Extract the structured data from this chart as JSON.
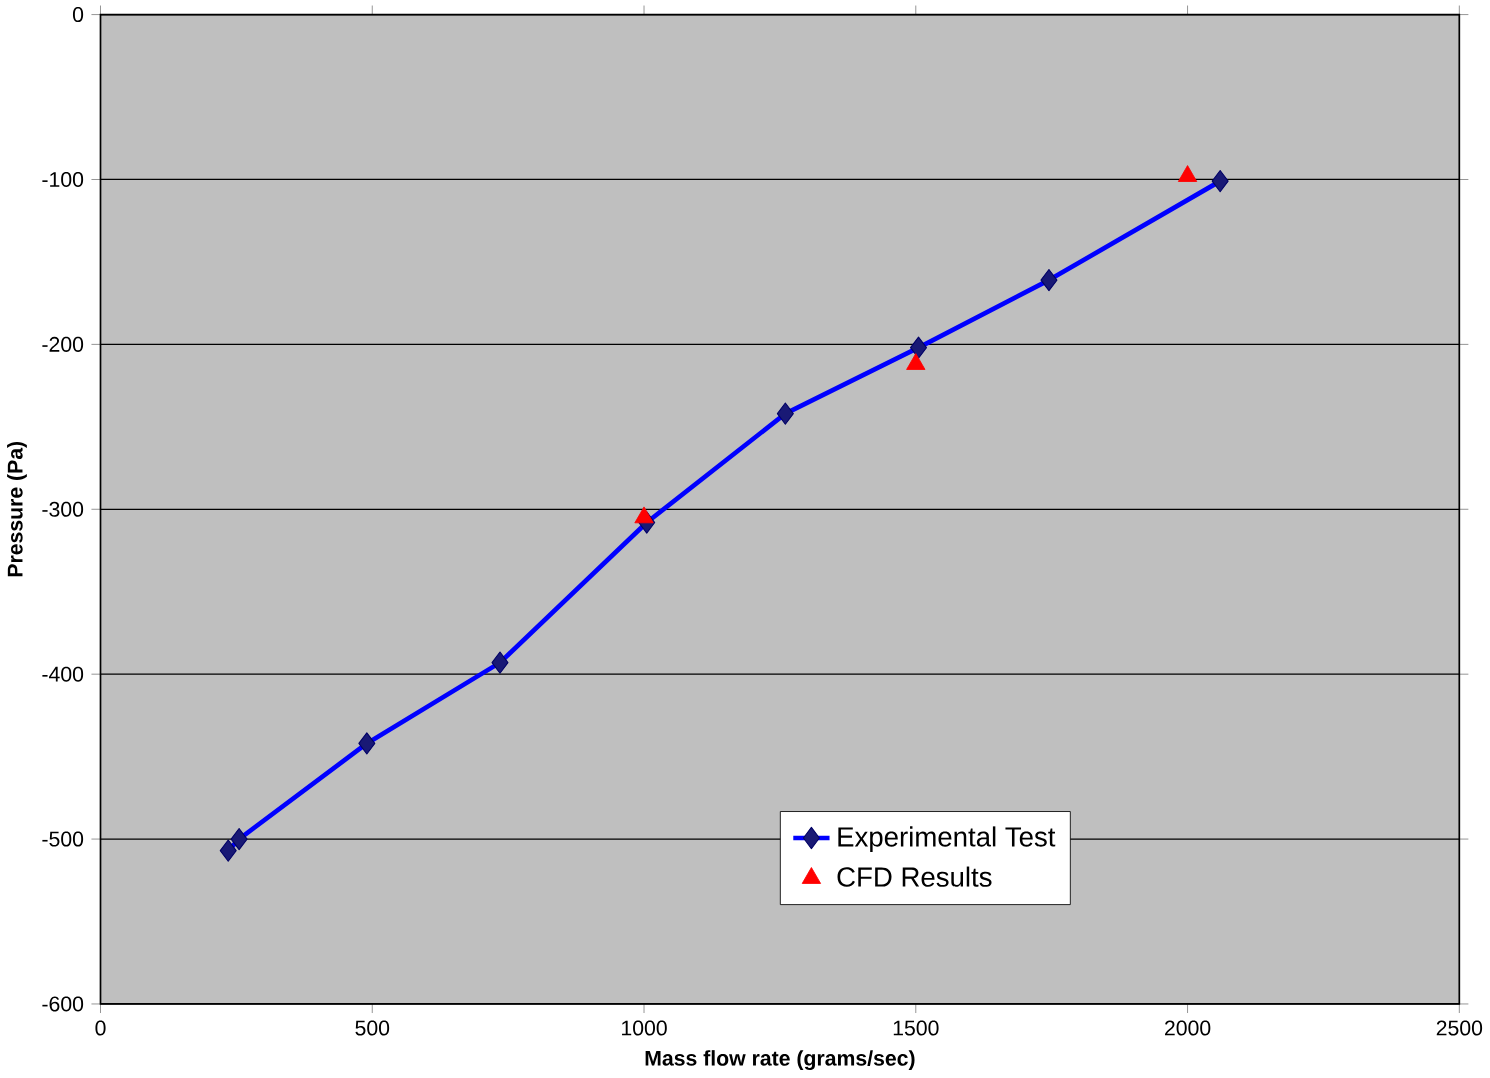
{
  "chart_data": {
    "type": "line",
    "xlabel": "Mass flow rate (grams/sec)",
    "ylabel": "Pressure (Pa)",
    "xlim": [
      0,
      2500
    ],
    "xticks": [
      0,
      500,
      1000,
      1500,
      2000,
      2500
    ],
    "ylim": [
      -600,
      0
    ],
    "yticks": [
      -600,
      -500,
      -400,
      -300,
      -200,
      -100,
      0
    ],
    "grid": "y",
    "legend": "bottom",
    "series": [
      {
        "name": "Experimental Test",
        "type": "line",
        "color": "#0000ff",
        "marker": "diamond",
        "x": [
          235,
          255,
          490,
          735,
          1005,
          1260,
          1505,
          1745,
          2060
        ],
        "values": [
          -507,
          -500,
          -442,
          -393,
          -308,
          -242,
          -202,
          -161,
          -101
        ]
      },
      {
        "name": "CFD Results",
        "type": "scatter",
        "color": "#ff0000",
        "marker": "triangle",
        "x": [
          1000,
          1500,
          2000
        ],
        "values": [
          -305,
          -212,
          -98
        ]
      }
    ]
  }
}
